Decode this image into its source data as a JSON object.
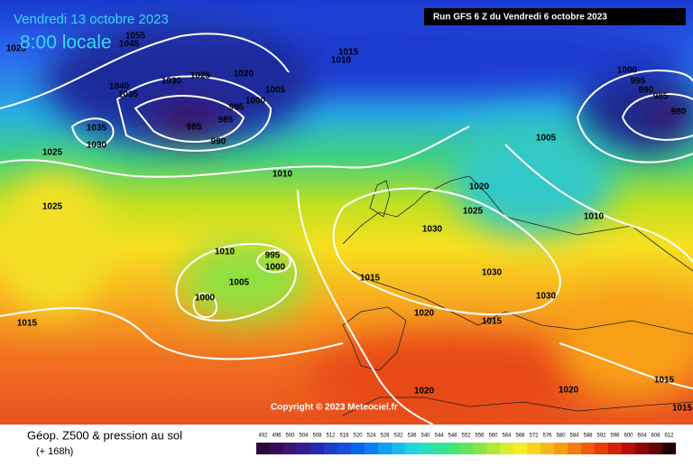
{
  "header": {
    "date": "Vendredi 13 octobre 2023",
    "time": "8:00 locale",
    "run": "Run GFS 6 Z du Vendredi 6 octobre 2023"
  },
  "copyright": "Copyright © 2023 Meteociel.fr",
  "footer": {
    "title": "Géop. Z500 & pression au sol",
    "lead": "(+ 168h)"
  },
  "isobars": [
    "1025",
    "1055",
    "1045",
    "1040",
    "1035",
    "1030",
    "1025",
    "1020",
    "1005",
    "1000",
    "995",
    "985",
    "985",
    "990",
    "1035",
    "1030",
    "1025",
    "1025",
    "1010",
    "1015",
    "1010",
    "1000",
    "995",
    "990",
    "985",
    "980",
    "1005",
    "1020",
    "1025",
    "1030",
    "1010",
    "1010",
    "995",
    "1000",
    "1005",
    "1000",
    "1015",
    "1030",
    "1030",
    "1015",
    "1020",
    "1015",
    "1020",
    "1020",
    "1015",
    "1015"
  ],
  "legend": {
    "ticks": [
      492,
      496,
      500,
      504,
      508,
      512,
      516,
      520,
      524,
      528,
      532,
      536,
      540,
      544,
      548,
      552,
      556,
      560,
      564,
      568,
      572,
      576,
      580,
      584,
      588,
      592,
      596,
      600,
      604,
      608,
      612
    ],
    "colors": [
      "#2a0a3a",
      "#3a0a5a",
      "#3c1478",
      "#341c94",
      "#2a28b0",
      "#1e3cc8",
      "#1450dc",
      "#0a64ec",
      "#0a80f4",
      "#10a0f0",
      "#18bcec",
      "#20d4e0",
      "#28e0c0",
      "#30e49c",
      "#40e478",
      "#60e460",
      "#88e448",
      "#b0e838",
      "#d8ec30",
      "#f4ec28",
      "#f8d420",
      "#f8b818",
      "#f89c14",
      "#f47c10",
      "#f05c0c",
      "#e83c08",
      "#d42004",
      "#b80c04",
      "#900404",
      "#600404",
      "#200000"
    ]
  }
}
